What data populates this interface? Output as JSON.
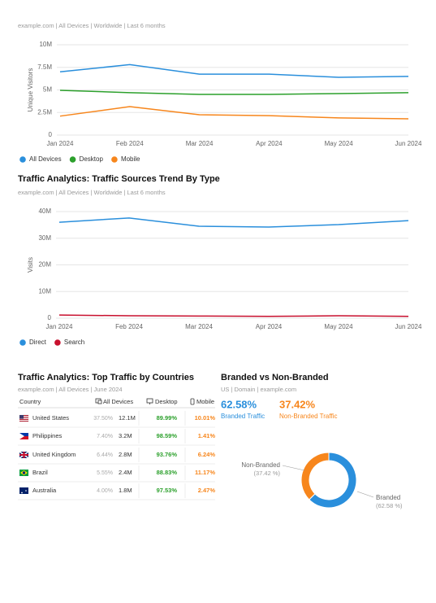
{
  "chart_data": [
    {
      "type": "line",
      "subtitle": "example.com | All Devices | Worldwide | Last 6 months",
      "ylabel": "Unique Visitors",
      "categories": [
        "Jan 2024",
        "Feb 2024",
        "Mar 2024",
        "Apr 2024",
        "May 2024",
        "Jun 2024"
      ],
      "series": [
        {
          "name": "All Devices",
          "color": "#2a8fdc",
          "values": [
            7000000,
            7800000,
            6750000,
            6750000,
            6400000,
            6500000
          ]
        },
        {
          "name": "Desktop",
          "color": "#2ca02c",
          "values": [
            4950000,
            4700000,
            4500000,
            4500000,
            4600000,
            4700000
          ]
        },
        {
          "name": "Mobile",
          "color": "#f7861c",
          "values": [
            2100000,
            3150000,
            2250000,
            2150000,
            1900000,
            1800000
          ]
        }
      ],
      "ylim": [
        0,
        10000000
      ],
      "yticks": [
        0,
        {
          "value": 2500000,
          "label": "2.5M"
        },
        {
          "value": 5000000,
          "label": "5M"
        },
        {
          "value": 7500000,
          "label": "7.5M"
        },
        {
          "value": 10000000,
          "label": "10M"
        }
      ],
      "grid": true,
      "legend": "bottom"
    },
    {
      "type": "line",
      "title": "Traffic Analytics: Traffic Sources Trend By Type",
      "subtitle": "example.com | All Devices | Worldwide | Last 6 months",
      "ylabel": "Visits",
      "categories": [
        "Jan 2024",
        "Feb 2024",
        "Mar 2024",
        "Apr 2024",
        "May 2024",
        "Jun 2024"
      ],
      "series": [
        {
          "name": "Direct",
          "color": "#2a8fdc",
          "values": [
            36000000,
            37600000,
            34500000,
            34200000,
            35100000,
            36600000
          ]
        },
        {
          "name": "Search",
          "color": "#c8102e",
          "values": [
            1200000,
            900000,
            800000,
            700000,
            900000,
            700000
          ]
        }
      ],
      "ylim": [
        0,
        40000000
      ],
      "yticks": [
        0,
        {
          "value": 10000000,
          "label": "10M"
        },
        {
          "value": 20000000,
          "label": "20M"
        },
        {
          "value": 30000000,
          "label": "30M"
        },
        {
          "value": 40000000,
          "label": "40M"
        }
      ],
      "grid": true,
      "legend": "bottom"
    },
    {
      "type": "donut",
      "title": "Branded vs Non-Branded",
      "subtitle": "US | Domain | example.com",
      "categories": [
        "Branded",
        "Non-Branded"
      ],
      "values": [
        62.58,
        37.42
      ],
      "value_labels": [
        "(62.58 %)",
        "(37.42 %)"
      ],
      "colors": [
        "#2a8fdc",
        "#f7861c"
      ]
    }
  ],
  "branded_summary": [
    {
      "value": "62.58%",
      "label": "Branded Traffic"
    },
    {
      "value": "37.42%",
      "label": "Non-Branded Traffic"
    }
  ],
  "country_table": {
    "title": "Traffic Analytics: Top Traffic by Countries",
    "subtitle": "example.com | All Devices | June 2024",
    "columns": [
      "Country",
      "All Devices",
      "Desktop",
      "Mobile"
    ],
    "rows": [
      [
        "United States",
        "37.50%",
        "12.1M",
        "89.99%",
        "10.01%"
      ],
      [
        "Philippines",
        "7.40%",
        "3.2M",
        "98.59%",
        "1.41%"
      ],
      [
        "United Kingdom",
        "6.44%",
        "2.8M",
        "93.76%",
        "6.24%"
      ],
      [
        "Brazil",
        "5.55%",
        "2.4M",
        "88.83%",
        "11.17%"
      ],
      [
        "Australia",
        "4.00%",
        "1.8M",
        "97.53%",
        "2.47%"
      ]
    ]
  }
}
